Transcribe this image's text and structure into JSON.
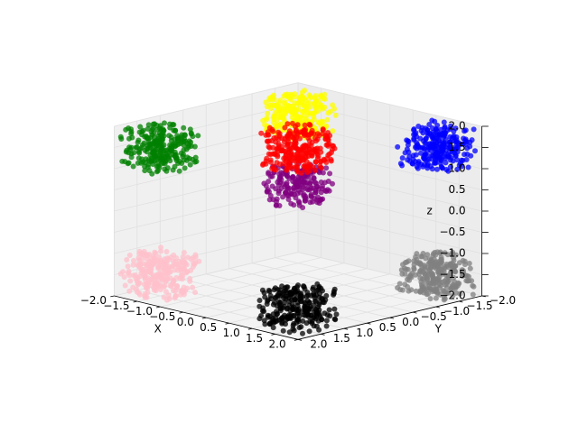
{
  "chart_data": {
    "type": "scatter",
    "projection": "3d",
    "title": "",
    "axes": {
      "x": {
        "label": "X",
        "range": [
          -2.0,
          2.0
        ],
        "ticks": [
          -2.0,
          -1.5,
          -1.0,
          -0.5,
          0.0,
          0.5,
          1.0,
          1.5,
          2.0
        ],
        "tick_labels": [
          "−2.0",
          "−1.5",
          "−1.0",
          "−0.5",
          "0.0",
          "0.5",
          "1.0",
          "1.5",
          "2.0"
        ]
      },
      "y": {
        "label": "Y",
        "range": [
          -2.0,
          2.0
        ],
        "ticks": [
          -2.0,
          -1.5,
          -1.0,
          -0.5,
          0.0,
          0.5,
          1.0,
          1.5,
          2.0
        ],
        "tick_labels": [
          "−2.0",
          "−1.5",
          "−1.0",
          "−0.5",
          "0.0",
          "0.5",
          "1.0",
          "1.5",
          "2.0"
        ]
      },
      "z": {
        "label": "z",
        "range": [
          -2.0,
          2.0
        ],
        "ticks": [
          -2.0,
          -1.5,
          -1.0,
          -0.5,
          0.0,
          0.5,
          1.0,
          1.5,
          2.0
        ],
        "tick_labels": [
          "−2.0",
          "−1.5",
          "−1.0",
          "−0.5",
          "0.0",
          "0.5",
          "1.0",
          "1.5",
          "2.0"
        ]
      }
    },
    "grid": true,
    "view": {
      "elev": 20,
      "azim": 45
    },
    "clusters": [
      {
        "color": "#0000ff",
        "center": [
          1.5,
          -1.5,
          1.5
        ],
        "spread": 0.45,
        "count": 260
      },
      {
        "color": "#ffff00",
        "center": [
          -1.5,
          -1.5,
          1.5
        ],
        "spread": 0.45,
        "count": 260
      },
      {
        "color": "#008000",
        "center": [
          -1.5,
          1.5,
          1.5
        ],
        "spread": 0.45,
        "count": 260
      },
      {
        "color": "#ff0000",
        "center": [
          0.0,
          0.0,
          1.5
        ],
        "spread": 0.45,
        "count": 260
      },
      {
        "color": "#800080",
        "center": [
          0.0,
          0.0,
          0.6
        ],
        "spread": 0.42,
        "count": 200
      },
      {
        "color": "#808080",
        "center": [
          1.5,
          -1.5,
          -1.5
        ],
        "spread": 0.45,
        "count": 260
      },
      {
        "color": "#ffc0cb",
        "center": [
          -1.5,
          1.5,
          -1.5
        ],
        "spread": 0.45,
        "count": 260
      },
      {
        "color": "#000000",
        "center": [
          1.5,
          1.5,
          -1.5
        ],
        "spread": 0.45,
        "count": 260
      }
    ]
  }
}
